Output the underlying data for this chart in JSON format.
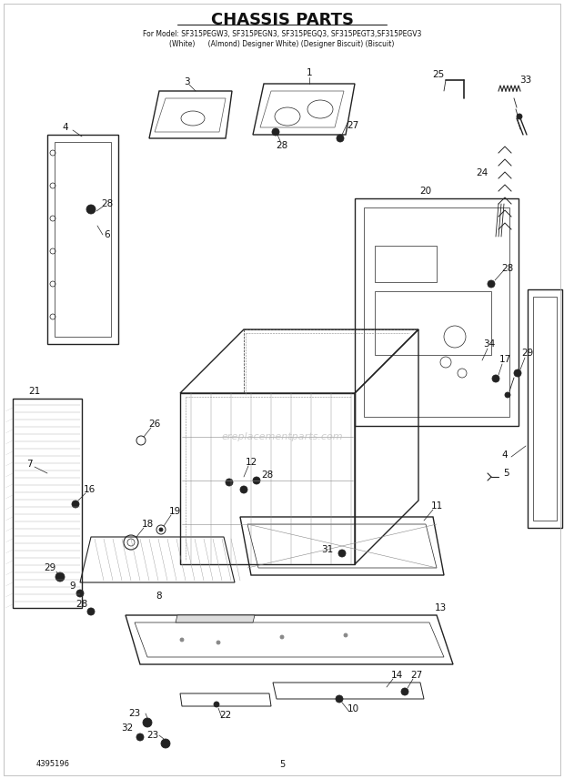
{
  "title": "CHASSIS PARTS",
  "subtitle_line1": "For Model: SF315PEGW3, SF315PEGN3, SF315PEGQ3, SF315PEGT3,SF315PEGV3",
  "subtitle_line2": "(White)      (Almond) Designer White) (Designer Biscuit) (Biscuit)",
  "page_number": "5",
  "doc_number": "4395196",
  "bg": "#ffffff",
  "lc": "#222222",
  "wm_text": "ereplacementparts.com",
  "wm_color": "#bbbbbb",
  "title_fs": 13,
  "sub_fs": 5.5,
  "label_fs": 7.5
}
